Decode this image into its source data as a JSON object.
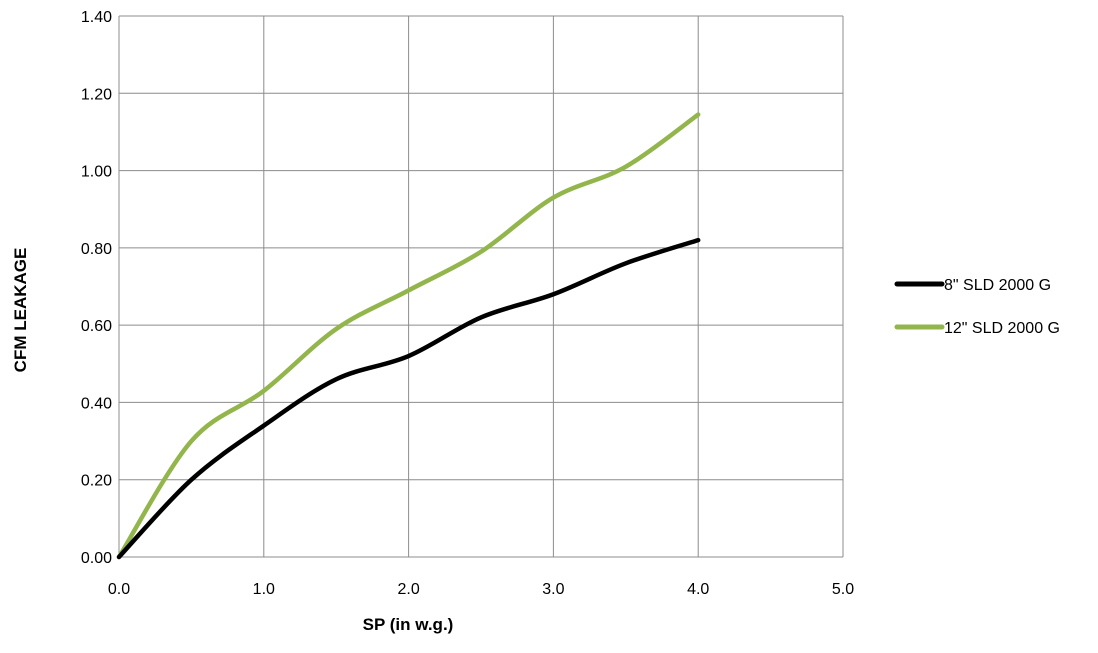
{
  "chart_data": {
    "type": "line",
    "title": "",
    "xlabel": "SP (in w.g.)",
    "ylabel": "CFM LEAKAGE",
    "xlim": [
      0,
      5
    ],
    "ylim": [
      0,
      1.4
    ],
    "x_ticks": [
      "0.0",
      "1.0",
      "2.0",
      "3.0",
      "4.0",
      "5.0"
    ],
    "y_ticks": [
      "0.00",
      "0.20",
      "0.40",
      "0.60",
      "0.80",
      "1.00",
      "1.20",
      "1.40"
    ],
    "grid": true,
    "legend_position": "right",
    "series": [
      {
        "name": "8\" SLD 2000 G",
        "color": "#000000",
        "points": [
          [
            0,
            0
          ],
          [
            0.5,
            0.2
          ],
          [
            1.0,
            0.34
          ],
          [
            1.5,
            0.46
          ],
          [
            2.0,
            0.52
          ],
          [
            2.5,
            0.62
          ],
          [
            3.0,
            0.68
          ],
          [
            3.5,
            0.76
          ],
          [
            4.0,
            0.82
          ]
        ]
      },
      {
        "name": "12\" SLD 2000 G",
        "color": "#92b54c",
        "points": [
          [
            0,
            0
          ],
          [
            0.5,
            0.3
          ],
          [
            1.0,
            0.43
          ],
          [
            1.5,
            0.59
          ],
          [
            2.0,
            0.69
          ],
          [
            2.5,
            0.79
          ],
          [
            3.0,
            0.93
          ],
          [
            3.5,
            1.01
          ],
          [
            4.0,
            1.145
          ]
        ]
      }
    ]
  }
}
